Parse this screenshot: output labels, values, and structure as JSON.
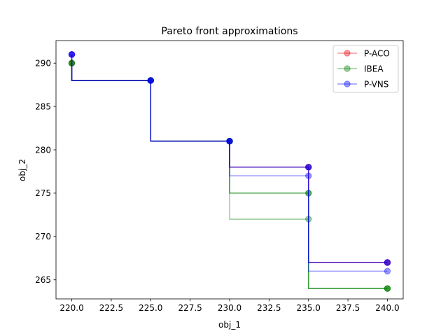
{
  "chart_data": {
    "type": "line",
    "title": "Pareto front approximations",
    "xlabel": "obj_1",
    "ylabel": "obj_2",
    "xlim": [
      219.0,
      241.0
    ],
    "ylim": [
      262.8,
      292.6
    ],
    "xticks": [
      220.0,
      222.5,
      225.0,
      227.5,
      230.0,
      232.5,
      235.0,
      237.5,
      240.0
    ],
    "xtick_labels": [
      "220.0",
      "222.5",
      "225.0",
      "227.5",
      "230.0",
      "232.5",
      "235.0",
      "237.5",
      "240.0"
    ],
    "yticks": [
      265,
      270,
      275,
      280,
      285,
      290
    ],
    "ytick_labels": [
      "265",
      "270",
      "275",
      "280",
      "285",
      "290"
    ],
    "legend": {
      "placement": "top-right",
      "entries": [
        "P-ACO",
        "IBEA",
        "P-VNS"
      ]
    },
    "series": [
      {
        "name": "P-ACO",
        "color": "#e8000b",
        "runs": [
          [
            [
              220,
              291
            ],
            [
              225,
              288
            ],
            [
              230,
              281
            ],
            [
              235,
              278
            ],
            [
              240,
              267
            ]
          ],
          [
            [
              220,
              290
            ],
            [
              225,
              288
            ],
            [
              230,
              281
            ],
            [
              235,
              278
            ],
            [
              240,
              267
            ]
          ]
        ]
      },
      {
        "name": "IBEA",
        "color": "#008000",
        "runs": [
          [
            [
              220,
              290
            ],
            [
              225,
              288
            ],
            [
              230,
              281
            ],
            [
              235,
              275
            ],
            [
              240,
              264
            ]
          ],
          [
            [
              220,
              290
            ],
            [
              225,
              288
            ],
            [
              230,
              281
            ],
            [
              235,
              272
            ],
            [
              240,
              264
            ]
          ],
          [
            [
              220,
              290
            ],
            [
              225,
              288
            ],
            [
              230,
              281
            ],
            [
              235,
              275
            ],
            [
              240,
              264
            ]
          ]
        ]
      },
      {
        "name": "P-VNS",
        "color": "#0000ff",
        "runs": [
          [
            [
              220,
              291
            ],
            [
              225,
              288
            ],
            [
              230,
              281
            ],
            [
              235,
              278
            ],
            [
              240,
              267
            ]
          ],
          [
            [
              220,
              291
            ],
            [
              225,
              288
            ],
            [
              230,
              281
            ],
            [
              235,
              277
            ],
            [
              240,
              266
            ]
          ],
          [
            [
              220,
              291
            ],
            [
              225,
              288
            ],
            [
              230,
              281
            ],
            [
              235,
              278
            ],
            [
              240,
              267
            ]
          ]
        ]
      }
    ]
  }
}
